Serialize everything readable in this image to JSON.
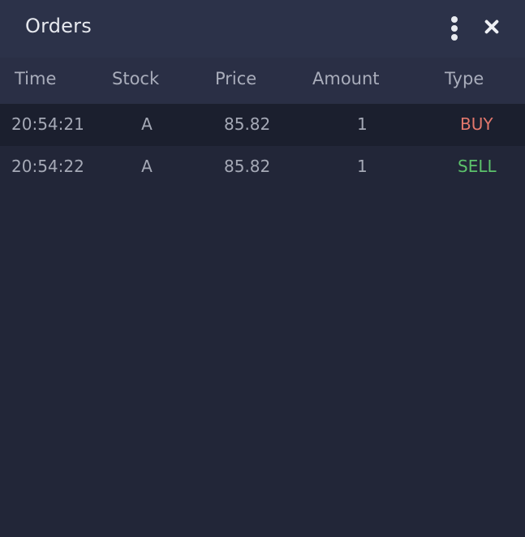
{
  "window": {
    "title": "Orders",
    "menu_icon": "more-vertical-icon",
    "close_icon": "close-icon"
  },
  "table": {
    "columns": [
      "Time",
      "Stock",
      "Price",
      "Amount",
      "Type"
    ],
    "rows": [
      {
        "time": "20:54:21",
        "stock": "A",
        "price": "85.82",
        "amount": "1",
        "type": "BUY"
      },
      {
        "time": "20:54:22",
        "stock": "A",
        "price": "85.82",
        "amount": "1",
        "type": "SELL"
      }
    ]
  },
  "colors": {
    "background": "#222638",
    "titlebar": "#2c3249",
    "header": "#2a2f45",
    "buy": "#e2776c",
    "sell": "#5cc26b"
  }
}
